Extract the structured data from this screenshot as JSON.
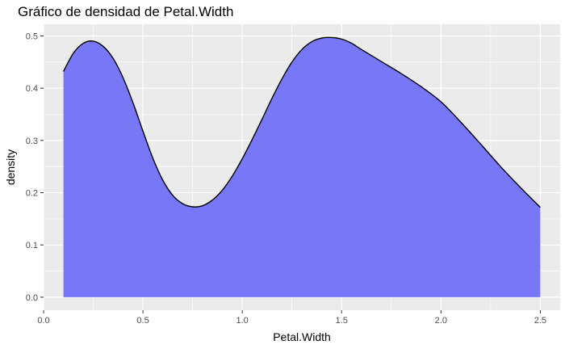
{
  "chart_data": {
    "type": "area",
    "title": "Gráfico de densidad de Petal.Width",
    "xlabel": "Petal.Width",
    "ylabel": "density",
    "xlim": [
      0.0,
      2.6
    ],
    "ylim": [
      -0.0249,
      0.5224
    ],
    "x_ticks": [
      0.0,
      0.5,
      1.0,
      1.5,
      2.0,
      2.5
    ],
    "x_tick_labels": [
      "0.0",
      "0.5",
      "1.0",
      "1.5",
      "2.0",
      "2.5"
    ],
    "y_ticks": [
      0.0,
      0.1,
      0.2,
      0.3,
      0.4,
      0.5
    ],
    "y_tick_labels": [
      "0.0",
      "0.1",
      "0.2",
      "0.3",
      "0.4",
      "0.5"
    ],
    "grid": true,
    "fill_color": "#7777f8",
    "line_color": "#000000",
    "panel_background": "#ebebeb",
    "grid_color": "#ffffff",
    "series": [
      {
        "x": [
          0.1,
          0.15,
          0.2,
          0.25,
          0.3,
          0.35,
          0.4,
          0.45,
          0.5,
          0.55,
          0.6,
          0.65,
          0.7,
          0.75,
          0.8,
          0.85,
          0.9,
          0.95,
          1.0,
          1.05,
          1.1,
          1.15,
          1.2,
          1.25,
          1.3,
          1.35,
          1.4,
          1.45,
          1.5,
          1.55,
          1.6,
          1.7,
          1.8,
          1.9,
          2.0,
          2.1,
          2.2,
          2.3,
          2.4,
          2.5
        ],
        "y": [
          0.432,
          0.467,
          0.486,
          0.49,
          0.48,
          0.457,
          0.42,
          0.372,
          0.318,
          0.266,
          0.224,
          0.195,
          0.179,
          0.173,
          0.175,
          0.186,
          0.205,
          0.232,
          0.265,
          0.302,
          0.341,
          0.381,
          0.418,
          0.45,
          0.474,
          0.489,
          0.496,
          0.497,
          0.494,
          0.486,
          0.474,
          0.451,
          0.428,
          0.403,
          0.374,
          0.335,
          0.293,
          0.25,
          0.21,
          0.172
        ]
      }
    ]
  }
}
